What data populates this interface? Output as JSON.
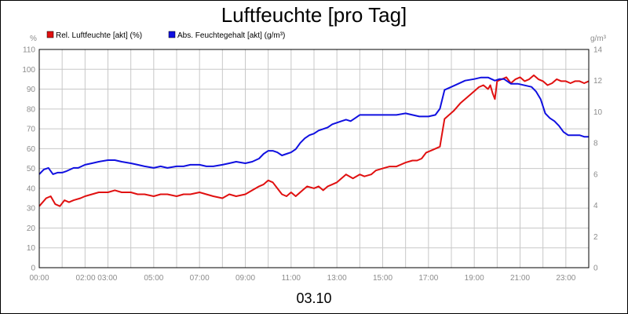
{
  "chart_data": {
    "type": "line",
    "title": "Luftfeuchte [pro Tag]",
    "date_label": "03.10",
    "left_axis_unit": "%",
    "right_axis_unit": "g/m³",
    "left_ylim": [
      0,
      110
    ],
    "right_ylim": [
      0,
      14
    ],
    "left_ticks": [
      0,
      10,
      20,
      30,
      40,
      50,
      60,
      70,
      80,
      90,
      100,
      110
    ],
    "right_ticks": [
      0,
      2,
      4,
      6,
      8,
      10,
      12,
      14
    ],
    "x_range_hours": [
      0,
      24
    ],
    "x_tick_labels": [
      {
        "h": 0,
        "label": "00:00"
      },
      {
        "h": 2.5,
        "label": "02:00 03:00"
      },
      {
        "h": 5,
        "label": "05:00"
      },
      {
        "h": 7,
        "label": "07:00"
      },
      {
        "h": 9,
        "label": "09:00"
      },
      {
        "h": 11,
        "label": "11:00"
      },
      {
        "h": 13,
        "label": "13:00"
      },
      {
        "h": 15,
        "label": "15:00"
      },
      {
        "h": 17,
        "label": "17:00"
      },
      {
        "h": 19,
        "label": "19:00"
      },
      {
        "h": 21,
        "label": "21:00"
      },
      {
        "h": 23,
        "label": "23:00"
      }
    ],
    "grid": true,
    "legend_position": "top-left",
    "series": [
      {
        "name": "Rel. Luftfeuchte [akt] (%)",
        "color": "#e01010",
        "axis": "left",
        "points": [
          [
            0,
            31
          ],
          [
            0.3,
            35
          ],
          [
            0.5,
            36
          ],
          [
            0.7,
            32
          ],
          [
            0.9,
            31
          ],
          [
            1.1,
            34
          ],
          [
            1.3,
            33
          ],
          [
            1.5,
            34
          ],
          [
            1.8,
            35
          ],
          [
            2.0,
            36
          ],
          [
            2.3,
            37
          ],
          [
            2.6,
            38
          ],
          [
            3.0,
            38
          ],
          [
            3.3,
            39
          ],
          [
            3.6,
            38
          ],
          [
            4.0,
            38
          ],
          [
            4.3,
            37
          ],
          [
            4.6,
            37
          ],
          [
            5.0,
            36
          ],
          [
            5.3,
            37
          ],
          [
            5.6,
            37
          ],
          [
            6.0,
            36
          ],
          [
            6.3,
            37
          ],
          [
            6.6,
            37
          ],
          [
            7.0,
            38
          ],
          [
            7.3,
            37
          ],
          [
            7.6,
            36
          ],
          [
            8.0,
            35
          ],
          [
            8.3,
            37
          ],
          [
            8.6,
            36
          ],
          [
            9.0,
            37
          ],
          [
            9.3,
            39
          ],
          [
            9.6,
            41
          ],
          [
            9.8,
            42
          ],
          [
            10.0,
            44
          ],
          [
            10.2,
            43
          ],
          [
            10.4,
            40
          ],
          [
            10.6,
            37
          ],
          [
            10.8,
            36
          ],
          [
            11.0,
            38
          ],
          [
            11.2,
            36
          ],
          [
            11.5,
            39
          ],
          [
            11.7,
            41
          ],
          [
            12.0,
            40
          ],
          [
            12.2,
            41
          ],
          [
            12.4,
            39
          ],
          [
            12.6,
            41
          ],
          [
            12.8,
            42
          ],
          [
            13.0,
            43
          ],
          [
            13.2,
            45
          ],
          [
            13.4,
            47
          ],
          [
            13.7,
            45
          ],
          [
            14.0,
            47
          ],
          [
            14.2,
            46
          ],
          [
            14.5,
            47
          ],
          [
            14.7,
            49
          ],
          [
            15.0,
            50
          ],
          [
            15.3,
            51
          ],
          [
            15.6,
            51
          ],
          [
            16.0,
            53
          ],
          [
            16.3,
            54
          ],
          [
            16.5,
            54
          ],
          [
            16.7,
            55
          ],
          [
            16.9,
            58
          ],
          [
            17.1,
            59
          ],
          [
            17.3,
            60
          ],
          [
            17.5,
            61
          ],
          [
            17.7,
            75
          ],
          [
            17.9,
            77
          ],
          [
            18.1,
            79
          ],
          [
            18.4,
            83
          ],
          [
            18.7,
            86
          ],
          [
            19.0,
            89
          ],
          [
            19.2,
            91
          ],
          [
            19.4,
            92
          ],
          [
            19.6,
            90
          ],
          [
            19.7,
            92
          ],
          [
            19.8,
            88
          ],
          [
            19.9,
            85
          ],
          [
            20.0,
            94
          ],
          [
            20.2,
            95
          ],
          [
            20.4,
            96
          ],
          [
            20.6,
            93
          ],
          [
            20.8,
            95
          ],
          [
            21.0,
            96
          ],
          [
            21.2,
            94
          ],
          [
            21.4,
            95
          ],
          [
            21.6,
            97
          ],
          [
            21.8,
            95
          ],
          [
            22.0,
            94
          ],
          [
            22.2,
            92
          ],
          [
            22.4,
            93
          ],
          [
            22.6,
            95
          ],
          [
            22.8,
            94
          ],
          [
            23.0,
            94
          ],
          [
            23.2,
            93
          ],
          [
            23.4,
            94
          ],
          [
            23.6,
            94
          ],
          [
            23.8,
            93
          ],
          [
            24.0,
            94
          ]
        ]
      },
      {
        "name": "Abs. Feuchtegehalt [akt] (g/m³)",
        "color": "#1010e0",
        "axis": "right",
        "points": [
          [
            0,
            6.0
          ],
          [
            0.2,
            6.3
          ],
          [
            0.4,
            6.4
          ],
          [
            0.6,
            6.0
          ],
          [
            0.8,
            6.1
          ],
          [
            1.0,
            6.1
          ],
          [
            1.2,
            6.2
          ],
          [
            1.5,
            6.4
          ],
          [
            1.7,
            6.4
          ],
          [
            2.0,
            6.6
          ],
          [
            2.3,
            6.7
          ],
          [
            2.6,
            6.8
          ],
          [
            3.0,
            6.9
          ],
          [
            3.3,
            6.9
          ],
          [
            3.6,
            6.8
          ],
          [
            4.0,
            6.7
          ],
          [
            4.3,
            6.6
          ],
          [
            4.6,
            6.5
          ],
          [
            5.0,
            6.4
          ],
          [
            5.3,
            6.5
          ],
          [
            5.6,
            6.4
          ],
          [
            6.0,
            6.5
          ],
          [
            6.3,
            6.5
          ],
          [
            6.6,
            6.6
          ],
          [
            7.0,
            6.6
          ],
          [
            7.3,
            6.5
          ],
          [
            7.6,
            6.5
          ],
          [
            8.0,
            6.6
          ],
          [
            8.3,
            6.7
          ],
          [
            8.6,
            6.8
          ],
          [
            9.0,
            6.7
          ],
          [
            9.3,
            6.8
          ],
          [
            9.6,
            7.0
          ],
          [
            9.8,
            7.3
          ],
          [
            10.0,
            7.5
          ],
          [
            10.2,
            7.5
          ],
          [
            10.4,
            7.4
          ],
          [
            10.6,
            7.2
          ],
          [
            10.8,
            7.3
          ],
          [
            11.0,
            7.4
          ],
          [
            11.2,
            7.6
          ],
          [
            11.4,
            8.0
          ],
          [
            11.6,
            8.3
          ],
          [
            11.8,
            8.5
          ],
          [
            12.0,
            8.6
          ],
          [
            12.2,
            8.8
          ],
          [
            12.4,
            8.9
          ],
          [
            12.6,
            9.0
          ],
          [
            12.8,
            9.2
          ],
          [
            13.0,
            9.3
          ],
          [
            13.2,
            9.4
          ],
          [
            13.4,
            9.5
          ],
          [
            13.6,
            9.4
          ],
          [
            13.8,
            9.6
          ],
          [
            14.0,
            9.8
          ],
          [
            14.3,
            9.8
          ],
          [
            14.6,
            9.8
          ],
          [
            15.0,
            9.8
          ],
          [
            15.3,
            9.8
          ],
          [
            15.6,
            9.8
          ],
          [
            16.0,
            9.9
          ],
          [
            16.3,
            9.8
          ],
          [
            16.6,
            9.7
          ],
          [
            17.0,
            9.7
          ],
          [
            17.3,
            9.8
          ],
          [
            17.5,
            10.2
          ],
          [
            17.7,
            11.4
          ],
          [
            18.0,
            11.6
          ],
          [
            18.3,
            11.8
          ],
          [
            18.6,
            12.0
          ],
          [
            19.0,
            12.1
          ],
          [
            19.3,
            12.2
          ],
          [
            19.6,
            12.2
          ],
          [
            19.9,
            12.0
          ],
          [
            20.1,
            12.1
          ],
          [
            20.3,
            12.1
          ],
          [
            20.6,
            11.8
          ],
          [
            20.9,
            11.8
          ],
          [
            21.2,
            11.7
          ],
          [
            21.5,
            11.6
          ],
          [
            21.7,
            11.3
          ],
          [
            21.9,
            10.8
          ],
          [
            22.1,
            9.9
          ],
          [
            22.3,
            9.6
          ],
          [
            22.5,
            9.4
          ],
          [
            22.7,
            9.1
          ],
          [
            22.9,
            8.7
          ],
          [
            23.1,
            8.5
          ],
          [
            23.3,
            8.5
          ],
          [
            23.6,
            8.5
          ],
          [
            23.8,
            8.4
          ],
          [
            24.0,
            8.4
          ]
        ]
      }
    ]
  }
}
